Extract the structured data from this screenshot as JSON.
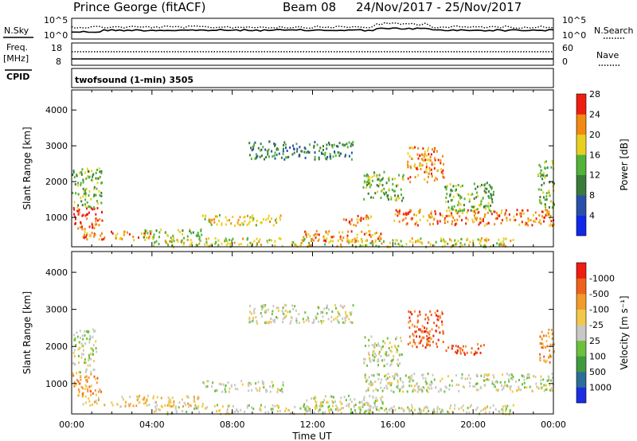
{
  "header": {
    "station": "Prince George (fitACF)",
    "beam": "Beam 08",
    "date_range": "24/Nov/2017 - 25/Nov/2017"
  },
  "panels": {
    "nsky_label": "N.Sky",
    "nsky_ticks_left": [
      "10^5",
      "10^0"
    ],
    "nsky_ticks_right": [
      "10^5",
      "10^0"
    ],
    "nsearch_label": "N.Search",
    "freq_label": "Freq.",
    "freq_unit": "[MHz]",
    "freq_ticks": [
      "18",
      "8"
    ],
    "nave_ticks": [
      "60",
      "0"
    ],
    "nave_label": "Nave",
    "cpid_label": "CPID",
    "cpid_text": "twofsound (1-min) 3505"
  },
  "chart_data": [
    {
      "type": "heatmap",
      "name": "power",
      "ylabel": "Slant Range [km]",
      "yticks": [
        1000,
        2000,
        3000,
        4000
      ],
      "ylim": [
        180,
        4560
      ],
      "xlim": [
        0,
        24
      ],
      "colorbar": {
        "label": "Power [dB]",
        "ticks": [
          4,
          8,
          12,
          16,
          20,
          24,
          28
        ],
        "colors": [
          "#1028e8",
          "#2a4fa8",
          "#3a7a3a",
          "#52b23a",
          "#e8d020",
          "#f08a10",
          "#ee1e12"
        ]
      },
      "regions": [
        {
          "t0": 0.0,
          "t1": 1.5,
          "r0": 700,
          "r1": 1300,
          "level": 6
        },
        {
          "t0": 0.0,
          "t1": 1.5,
          "r0": 1300,
          "r1": 2400,
          "level": 3
        },
        {
          "t0": 0.5,
          "t1": 4.0,
          "r0": 400,
          "r1": 650,
          "level": 5
        },
        {
          "t0": 3.5,
          "t1": 6.5,
          "r0": 450,
          "r1": 700,
          "level": 3
        },
        {
          "t0": 6.5,
          "t1": 10.5,
          "r0": 800,
          "r1": 1100,
          "level": 4
        },
        {
          "t0": 8.8,
          "t1": 14.0,
          "r0": 2650,
          "r1": 3150,
          "level": 2
        },
        {
          "t0": 11.5,
          "t1": 15.5,
          "r0": 350,
          "r1": 650,
          "level": 5
        },
        {
          "t0": 13.5,
          "t1": 15.0,
          "r0": 800,
          "r1": 1100,
          "level": 5
        },
        {
          "t0": 14.5,
          "t1": 16.5,
          "r0": 1500,
          "r1": 2300,
          "level": 3
        },
        {
          "t0": 16.0,
          "t1": 24.0,
          "r0": 800,
          "r1": 1250,
          "level": 5
        },
        {
          "t0": 16.7,
          "t1": 18.5,
          "r0": 2000,
          "r1": 3000,
          "level": 5
        },
        {
          "t0": 18.5,
          "t1": 21.0,
          "r0": 1200,
          "r1": 2000,
          "level": 3
        },
        {
          "t0": 4.0,
          "t1": 22.0,
          "r0": 200,
          "r1": 450,
          "level": 4
        },
        {
          "t0": 23.2,
          "t1": 24.0,
          "r0": 1300,
          "r1": 2600,
          "level": 3
        }
      ]
    },
    {
      "type": "heatmap",
      "name": "velocity",
      "ylabel": "Slant Range [km]",
      "yticks": [
        1000,
        2000,
        3000,
        4000
      ],
      "ylim": [
        180,
        4560
      ],
      "xlim": [
        0,
        24
      ],
      "xlabel": "Time UT",
      "xticks": [
        "00:00",
        "04:00",
        "08:00",
        "12:00",
        "16:00",
        "20:00",
        "00:00"
      ],
      "colorbar": {
        "label": "Velocity [m s⁻¹]",
        "ticks": [
          1000,
          500,
          100,
          25,
          -25,
          -100,
          -500,
          -1000
        ],
        "colors": [
          "#1a2ee0",
          "#2c6e98",
          "#3f9a3f",
          "#6cc03c",
          "#c8c8c4",
          "#f2c84a",
          "#f29a2c",
          "#f0621c",
          "#ee1e12"
        ]
      },
      "regions": [
        {
          "t0": 0.0,
          "t1": 1.5,
          "r0": 700,
          "r1": 1300,
          "level": 6
        },
        {
          "t0": 0.0,
          "t1": 1.2,
          "r0": 1300,
          "r1": 2500,
          "level": 4
        },
        {
          "t0": 0.5,
          "t1": 6.5,
          "r0": 400,
          "r1": 700,
          "level": 5
        },
        {
          "t0": 6.5,
          "t1": 10.5,
          "r0": 800,
          "r1": 1100,
          "level": 4
        },
        {
          "t0": 8.8,
          "t1": 14.0,
          "r0": 2650,
          "r1": 3150,
          "level": 4
        },
        {
          "t0": 11.5,
          "t1": 15.5,
          "r0": 300,
          "r1": 700,
          "level": 4
        },
        {
          "t0": 14.5,
          "t1": 24.0,
          "r0": 800,
          "r1": 1300,
          "level": 4
        },
        {
          "t0": 14.5,
          "t1": 16.5,
          "r0": 1500,
          "r1": 2300,
          "level": 4
        },
        {
          "t0": 16.7,
          "t1": 18.5,
          "r0": 2000,
          "r1": 3000,
          "level": 7
        },
        {
          "t0": 18.5,
          "t1": 20.5,
          "r0": 1800,
          "r1": 2100,
          "level": 7
        },
        {
          "t0": 4.0,
          "t1": 22.0,
          "r0": 200,
          "r1": 450,
          "level": 4
        },
        {
          "t0": 23.2,
          "t1": 24.0,
          "r0": 1600,
          "r1": 2500,
          "level": 6
        }
      ]
    }
  ]
}
